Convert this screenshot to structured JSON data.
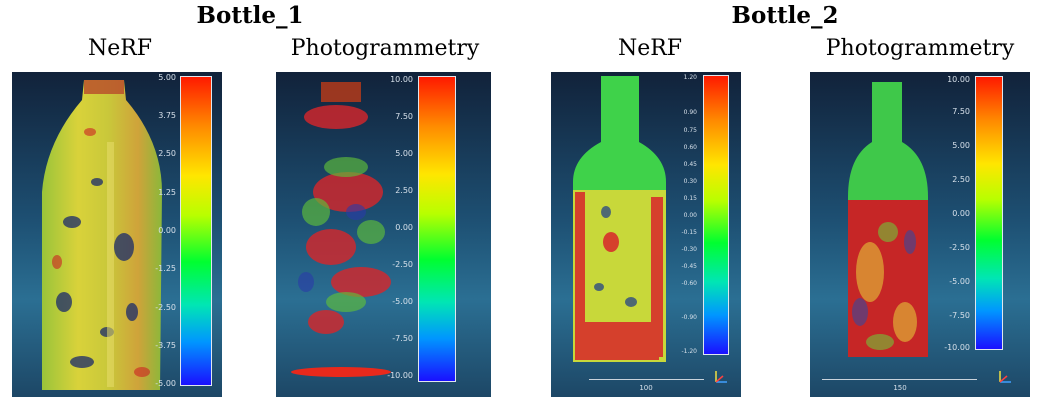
{
  "groups": {
    "bottle_1": {
      "title": "Bottle_1"
    },
    "bottle_2": {
      "title": "Bottle_2"
    }
  },
  "panels": [
    {
      "label": "NeRF",
      "ticks": [
        "5.00",
        "3.75",
        "2.50",
        "1.25",
        "0.00",
        "-1.25",
        "-2.50",
        "-3.75",
        "-5.00"
      ]
    },
    {
      "label": "Photogrammetry",
      "ticks": [
        "10.00",
        "7.50",
        "5.00",
        "2.50",
        "0.00",
        "-2.50",
        "-5.00",
        "-7.50",
        "-10.00"
      ]
    },
    {
      "label": "NeRF",
      "ticks": [
        "1.20",
        "0.90",
        "0.75",
        "0.60",
        "0.45",
        "0.30",
        "0.15",
        "0.00",
        "-0.15",
        "-0.30",
        "-0.45",
        "-0.60",
        "-0.90",
        "-1.20"
      ],
      "scale_label": "100"
    },
    {
      "label": "Photogrammetry",
      "ticks": [
        "10.00",
        "7.50",
        "5.00",
        "2.50",
        "0.00",
        "-2.50",
        "-5.00",
        "-7.50",
        "-10.00"
      ],
      "scale_label": "150"
    }
  ],
  "colors": {
    "background_panel": "#1d4f72",
    "colorbar": [
      "#ff1a00",
      "#ff8a00",
      "#ffe600",
      "#b8ff00",
      "#00ff30",
      "#00e6b4",
      "#0096ff",
      "#1a10ff"
    ]
  },
  "icons": [
    "axes-gizmo-icon"
  ]
}
